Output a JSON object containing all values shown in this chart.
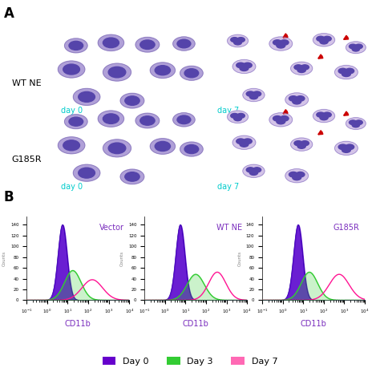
{
  "panel_A_label": "A",
  "panel_B_label": "B",
  "row_labels": [
    "WT NE",
    "G185R"
  ],
  "col_labels": [
    "day 0",
    "day 7"
  ],
  "flow_titles": [
    "Vector",
    "WT NE",
    "G185R"
  ],
  "flow_xlabel": "CD11b",
  "legend_labels": [
    "Day 0",
    "Day 3",
    "Day 7"
  ],
  "legend_colors": [
    "#6600CC",
    "#33CC33",
    "#FF69B4"
  ],
  "day0_color": "#5500CC",
  "day3_color": "#33CC33",
  "day7_color": "#FF1493",
  "bg_color": "#F5E8F0",
  "arrow_color": "#CC0000",
  "day_label_color": "#00CCCC",
  "flow_label_color": "#7B2FBE"
}
